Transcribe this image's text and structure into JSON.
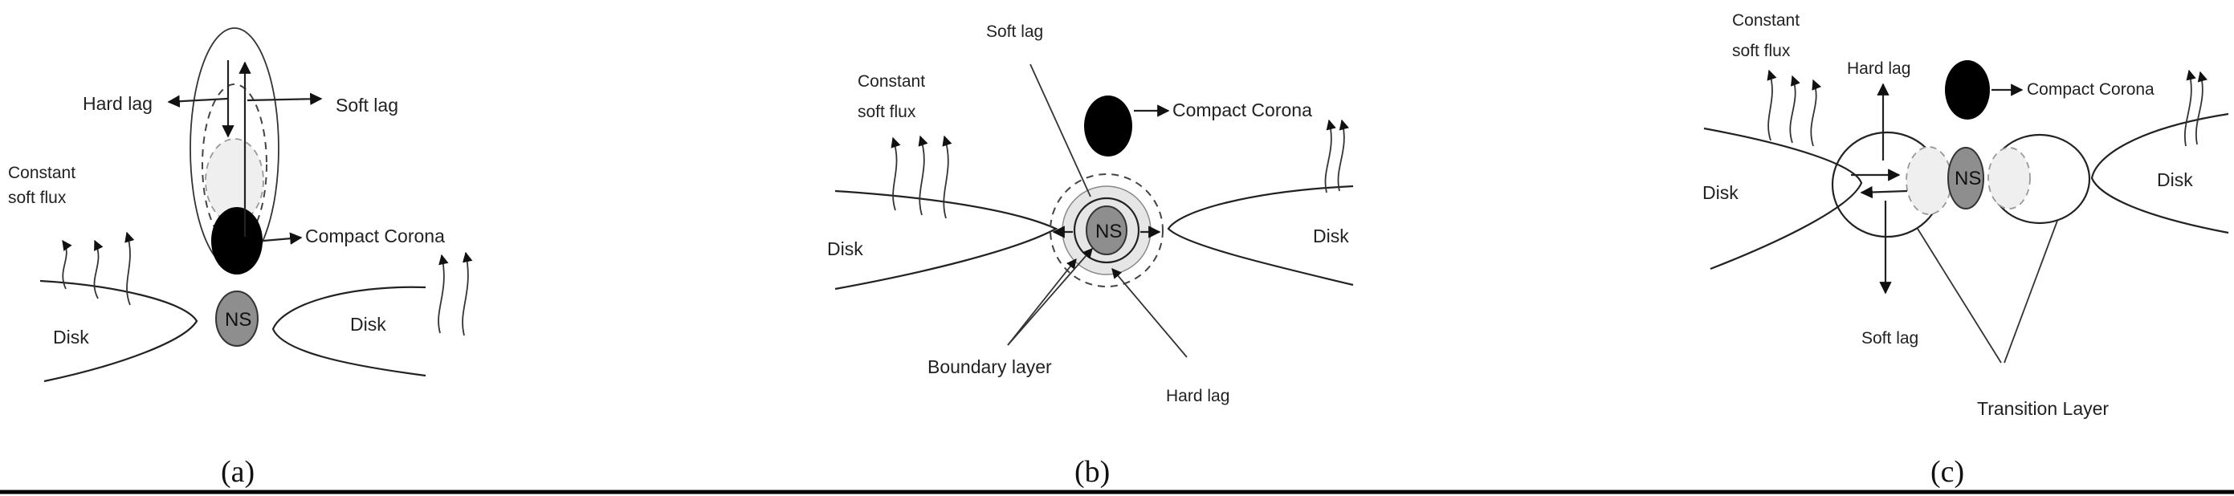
{
  "panels": {
    "a": {
      "caption": "(a)",
      "hard_lag": "Hard  lag",
      "soft_lag": "Soft lag",
      "constant_line1": "Constant",
      "constant_line2": "soft flux",
      "compact_corona": "Compact Corona",
      "disk_left": "Disk",
      "disk_right": "Disk",
      "ns": "NS"
    },
    "b": {
      "caption": "(b)",
      "soft_lag": "Soft lag",
      "constant_line1": "Constant",
      "constant_line2": "soft flux",
      "compact_corona": "Compact Corona",
      "disk_left": "Disk",
      "disk_right": "Disk",
      "ns": "NS",
      "boundary_layer": "Boundary layer",
      "hard_lag": "Hard lag"
    },
    "c": {
      "caption": "(c)",
      "constant_line1": "Constant",
      "constant_line2": "soft flux",
      "hard_lag": "Hard  lag",
      "compact_corona": "Compact Corona",
      "disk_left": "Disk",
      "disk_right": "Disk",
      "ns": "NS",
      "soft_lag": "Soft lag",
      "transition_layer": "Transition Layer"
    }
  },
  "colors": {
    "corona": "#000000",
    "neutron_star": "#8e8e8e",
    "shadow_corona": "#efefef",
    "border": "#000000"
  }
}
